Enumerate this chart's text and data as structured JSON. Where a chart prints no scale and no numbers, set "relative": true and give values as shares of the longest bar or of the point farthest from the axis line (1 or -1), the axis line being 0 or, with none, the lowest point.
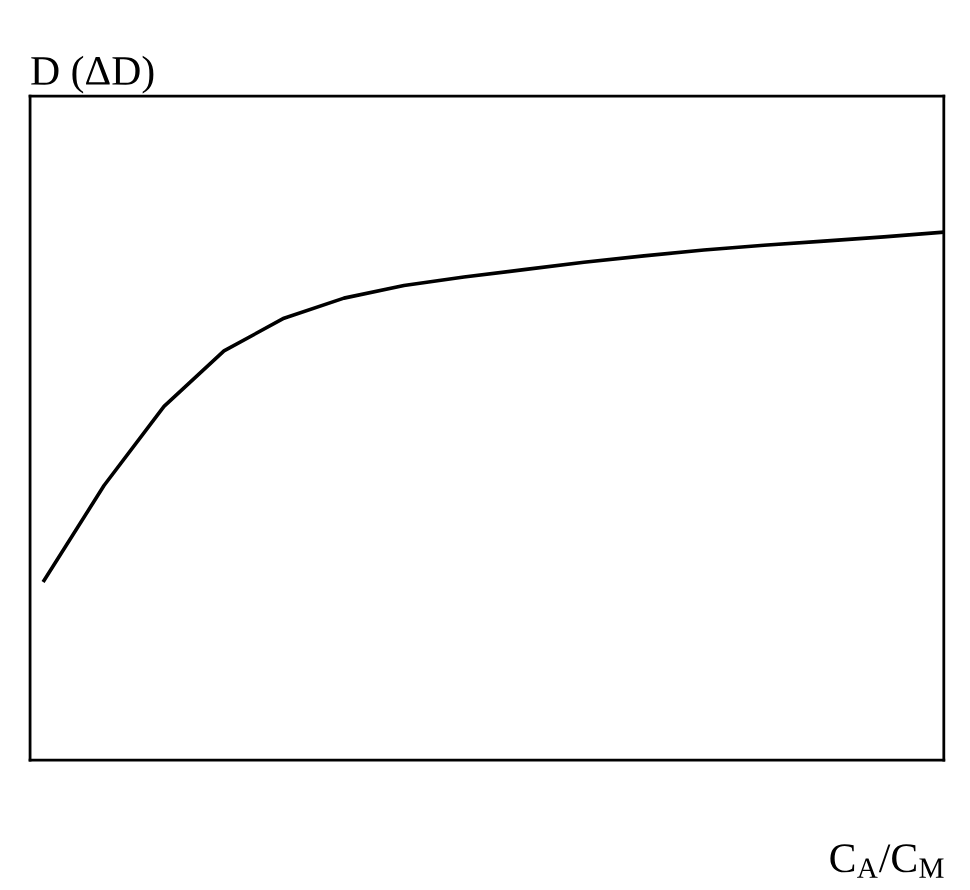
{
  "chart_data": {
    "type": "line",
    "relative": true,
    "xlabel": "C$_{A}$/C$_{M}$",
    "ylabel": "D (ΔD)",
    "categories": [
      null,
      null,
      null,
      null,
      null,
      null,
      null,
      null,
      null,
      null,
      null,
      null,
      null,
      null,
      null,
      null
    ],
    "series": [
      {
        "color": "#000000",
        "values": [
          0.34,
          0.52,
          0.67,
          0.775,
          0.837,
          0.875,
          0.899,
          0.915,
          0.929,
          0.943,
          0.955,
          0.966,
          0.975,
          0.983,
          0.991,
          1
        ]
      }
    ],
    "marker": "none",
    "line_style": "solid",
    "grid": false,
    "legend": false
  }
}
